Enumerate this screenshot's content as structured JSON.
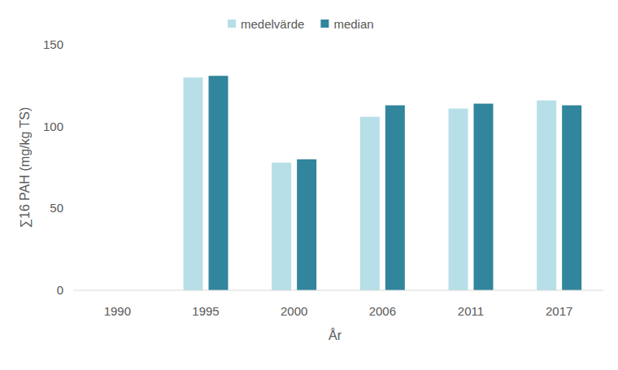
{
  "chart_data": {
    "type": "bar",
    "x_label": "År",
    "y_label": "∑16 PAH  (mg/kg TS)",
    "categories": [
      "1990",
      "1995",
      "2000",
      "2006",
      "2011",
      "2017"
    ],
    "series": [
      {
        "name": "medelvärde",
        "color": "#b7dfe8",
        "values": [
          null,
          130,
          78,
          106,
          111,
          116
        ]
      },
      {
        "name": "median",
        "color": "#31859c",
        "values": [
          null,
          131,
          80,
          113,
          114,
          113
        ]
      }
    ],
    "ylim": [
      0,
      150
    ],
    "yticks": [
      0,
      50,
      100,
      150
    ],
    "grid": false,
    "legend": "top"
  }
}
